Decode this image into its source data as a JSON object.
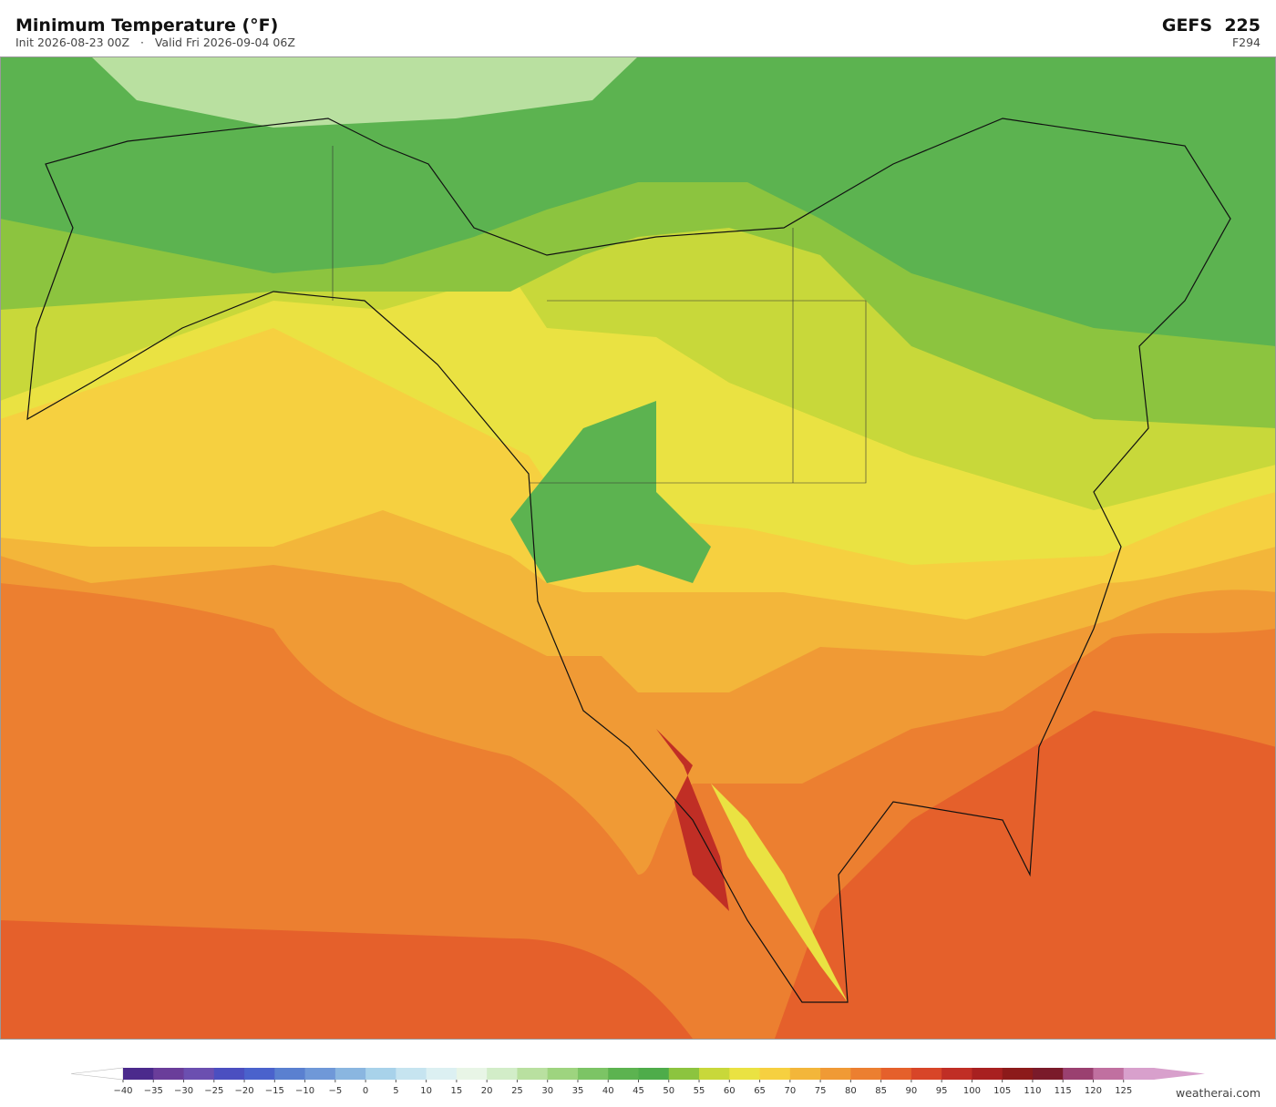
{
  "header": {
    "title": "Minimum Temperature  (°F)",
    "subtitle": "Init 2026-08-23 00Z   ·   Valid Fri 2026-09-04 06Z",
    "model": "GEFS  225",
    "forecast_hour": "F294"
  },
  "colorbar": {
    "labels": [
      "−40",
      "−35",
      "−30",
      "−25",
      "−20",
      "−15",
      "−10",
      "−5",
      "0",
      "5",
      "10",
      "15",
      "20",
      "25",
      "30",
      "35",
      "40",
      "45",
      "50",
      "55",
      "60",
      "65",
      "70",
      "75",
      "80",
      "85",
      "90",
      "95",
      "100",
      "105",
      "110",
      "115",
      "120",
      "125"
    ],
    "colors": [
      "#4b2a8c",
      "#6a3d9a",
      "#6b4fb0",
      "#4b4fc0",
      "#4a62cc",
      "#5a80d0",
      "#6f98d8",
      "#8ab6e0",
      "#a8d2ea",
      "#c6e4f0",
      "#dcf0f2",
      "#e8f5e6",
      "#d2edc8",
      "#b9e0a0",
      "#9ed47f",
      "#7cc465",
      "#5cb350",
      "#4eac4a",
      "#8cc43f",
      "#c8d83a",
      "#eae242",
      "#f6d040",
      "#f3b63a",
      "#f09a35",
      "#ec7f30",
      "#e5602b",
      "#d84528",
      "#c02e25",
      "#a82020",
      "#8c1a1a",
      "#7a1a2a",
      "#9a4070",
      "#c070a0",
      "#d8a0cc"
    ],
    "under": "#ffffff",
    "over": "#d8a0cc"
  },
  "watermark": "weatherai.com"
}
